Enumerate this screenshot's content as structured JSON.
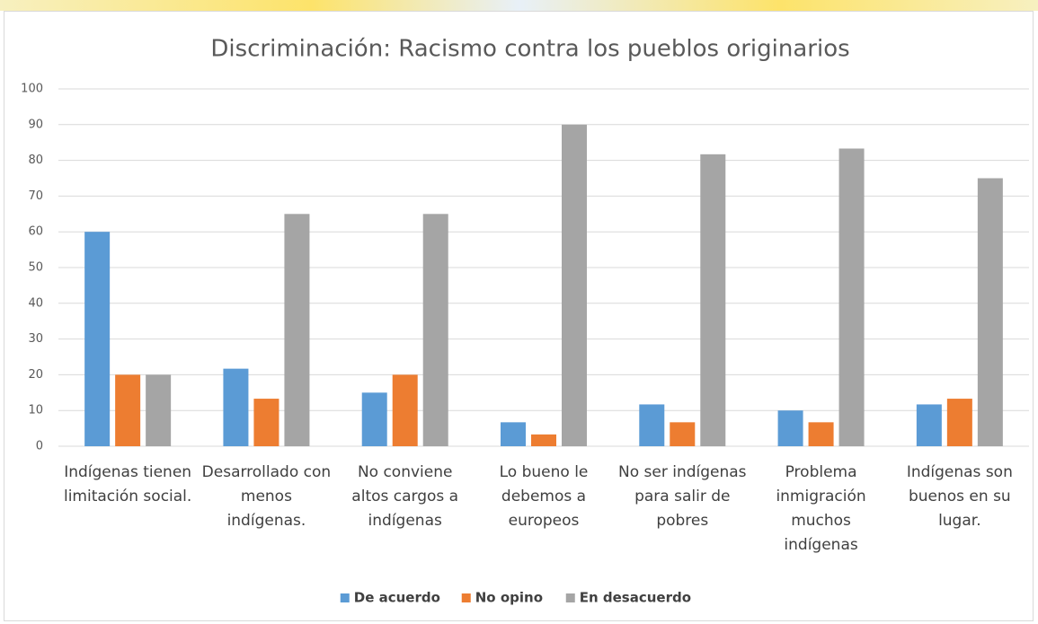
{
  "chart_data": {
    "type": "bar",
    "title": "Discriminación: Racismo contra los pueblos originarios",
    "categories": [
      "Indígenas tienen limitación social.",
      "Desarrollado con menos indígenas.",
      "No conviene altos cargos a indígenas",
      "Lo bueno le debemos a europeos",
      "No ser indígenas para salir de pobres",
      "Problema inmigración muchos indígenas",
      "Indígenas son buenos en su lugar."
    ],
    "series": [
      {
        "name": "De acuerdo",
        "color": "#5b9bd5",
        "values": [
          60,
          21.7,
          15,
          6.7,
          11.7,
          10,
          11.7
        ]
      },
      {
        "name": "No opino",
        "color": "#ed7d31",
        "values": [
          20,
          13.3,
          20,
          3.3,
          6.7,
          6.7,
          13.3
        ]
      },
      {
        "name": "En desacuerdo",
        "color": "#a5a5a5",
        "values": [
          20,
          65,
          65,
          90,
          81.7,
          83.3,
          75
        ]
      }
    ],
    "ylim": [
      0,
      100
    ],
    "yticks": [
      0,
      10,
      20,
      30,
      40,
      50,
      60,
      70,
      80,
      90,
      100
    ],
    "grid": true,
    "legend": "bottom"
  }
}
